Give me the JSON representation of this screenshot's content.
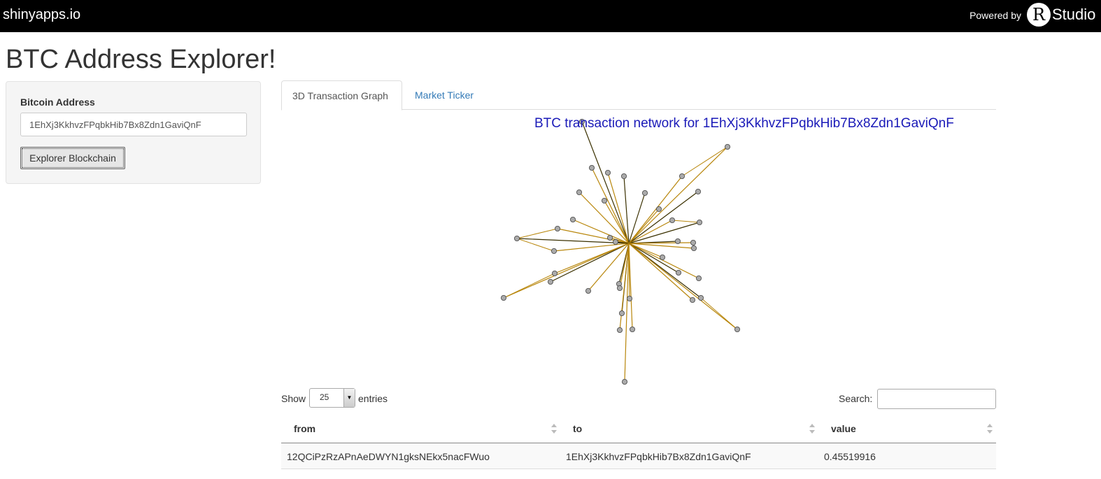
{
  "topbar": {
    "brand": "shinyapps.io",
    "powered_by": "Powered by",
    "r_logo": "R",
    "studio": "Studio"
  },
  "page": {
    "title": "BTC Address Explorer!"
  },
  "sidebar": {
    "label": "Bitcoin Address",
    "address_value": "1EhXj3KkhvzFPqbkHib7Bx8Zdn1GaviQnF",
    "button_label": "Explorer Blockchain"
  },
  "tabs": [
    {
      "label": "3D Transaction Graph",
      "active": true
    },
    {
      "label": "Market Ticker",
      "active": false
    }
  ],
  "graph": {
    "title": "BTC transaction network for 1EhXj3KkhvzFPqbkHib7Bx8Zdn1GaviQnF",
    "edge_color": "#b8860b",
    "node_color": "#aaaaaa"
  },
  "table": {
    "show_label": "Show",
    "entries_value": "25",
    "entries_label": "entries",
    "search_label": "Search:",
    "columns": [
      "from",
      "to",
      "value"
    ],
    "rows": [
      {
        "from": "12QCiPzRzAPnAeDWYN1gksNEkx5nacFWuo",
        "to": "1EhXj3KkhvzFPqbkHib7Bx8Zdn1GaviQnF",
        "value": "0.45519916"
      }
    ]
  }
}
